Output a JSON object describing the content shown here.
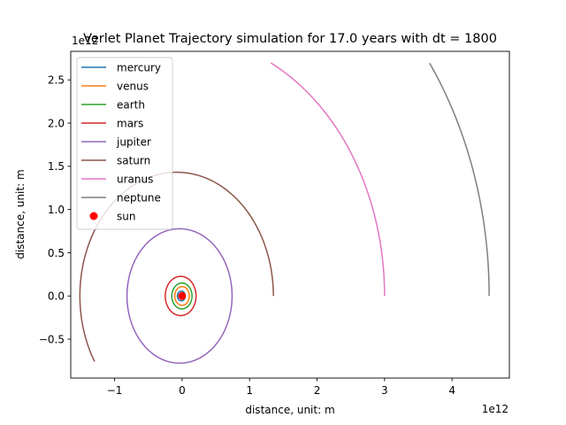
{
  "chart_data": {
    "type": "line",
    "title": "Verlet Planet Trajectory simulation for 17.0 years with dt = 1800",
    "xlabel": "distance, unit: m",
    "ylabel": "distance, unit: m",
    "x_offset_text": "1e12",
    "y_offset_text": "1e12",
    "xlim": [
      -1.65,
      4.85
    ],
    "ylim": [
      -0.95,
      2.83
    ],
    "x_ticks": [
      -1,
      0,
      1,
      2,
      3,
      4
    ],
    "x_tick_labels": [
      "−1",
      "0",
      "1",
      "2",
      "3",
      "4"
    ],
    "y_ticks": [
      -0.5,
      0.0,
      0.5,
      1.0,
      1.5,
      2.0,
      2.5
    ],
    "y_tick_labels": [
      "−0.5",
      "0.0",
      "0.5",
      "1.0",
      "1.5",
      "2.0",
      "2.5"
    ],
    "grid": false,
    "legend_position": "upper-left",
    "series": [
      {
        "name": "mercury",
        "color": "#1f77b4",
        "semi_major": 0.058,
        "eccentricity": 0.2056,
        "start_angle_deg": 0,
        "end_angle_deg": 360
      },
      {
        "name": "venus",
        "color": "#ff7f0e",
        "semi_major": 0.108,
        "eccentricity": 0.0068,
        "start_angle_deg": 0,
        "end_angle_deg": 360
      },
      {
        "name": "earth",
        "color": "#2ca02c",
        "semi_major": 0.1496,
        "eccentricity": 0.0167,
        "start_angle_deg": 0,
        "end_angle_deg": 360
      },
      {
        "name": "mars",
        "color": "#d62728",
        "semi_major": 0.228,
        "eccentricity": 0.0934,
        "start_angle_deg": 0,
        "end_angle_deg": 360
      },
      {
        "name": "jupiter",
        "color": "#9467bd",
        "semi_major": 0.7785,
        "eccentricity": 0.0489,
        "start_angle_deg": 0,
        "end_angle_deg": 360
      },
      {
        "name": "saturn",
        "color": "#8c564b",
        "semi_major": 1.4335,
        "eccentricity": 0.0565,
        "start_angle_deg": 0,
        "end_angle_deg": 212
      },
      {
        "name": "uranus",
        "color": "#e377c2",
        "semi_major": 3.0,
        "eccentricity": 0.0,
        "start_angle_deg": 0,
        "end_angle_deg": 64
      },
      {
        "name": "neptune",
        "color": "#7f7f7f",
        "semi_major": 4.55,
        "eccentricity": 0.0,
        "start_angle_deg": 0,
        "end_angle_deg": 36.3
      }
    ],
    "points": [
      {
        "name": "sun",
        "color": "#ff0000",
        "x": 0,
        "y": 0
      }
    ]
  }
}
